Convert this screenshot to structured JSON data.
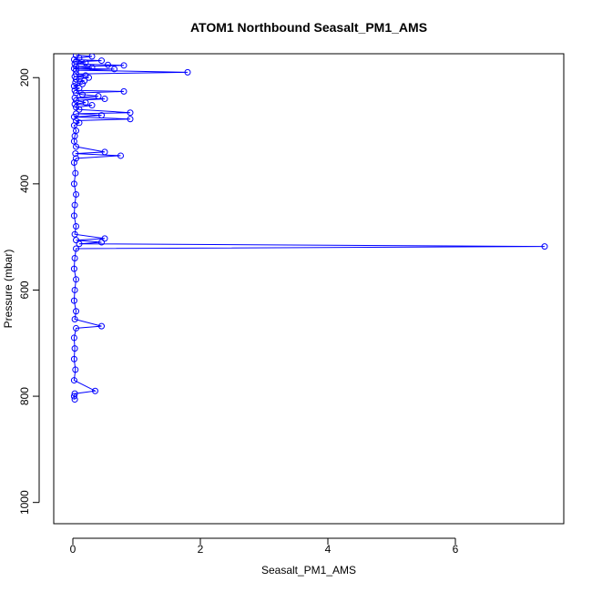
{
  "chart_data": {
    "type": "line",
    "title": "ATOM1 Northbound Seasalt_PM1_AMS",
    "xlabel": "Seasalt_PM1_AMS",
    "ylabel": "Pressure (mbar)",
    "xlim": [
      -0.3,
      7.7
    ],
    "ylim": [
      1040,
      155
    ],
    "y_reversed": true,
    "x_ticks": [
      0,
      2,
      4,
      6
    ],
    "y_ticks": [
      200,
      400,
      600,
      800,
      1000
    ],
    "grid": false,
    "colors": {
      "series": "#0000ff",
      "axes": "#000000"
    },
    "series": [
      {
        "values_note": "",
        "points": [
          [
            0.05,
            158
          ],
          [
            0.3,
            160
          ],
          [
            0.1,
            163
          ],
          [
            0.02,
            166
          ],
          [
            0.45,
            168
          ],
          [
            0.05,
            170
          ],
          [
            0.2,
            172
          ],
          [
            0.03,
            174
          ],
          [
            0.55,
            176
          ],
          [
            0.8,
            177
          ],
          [
            0.05,
            179
          ],
          [
            0.3,
            181
          ],
          [
            0.02,
            183
          ],
          [
            0.65,
            184
          ],
          [
            0.05,
            186
          ],
          [
            1.8,
            190
          ],
          [
            0.05,
            193
          ],
          [
            0.2,
            196
          ],
          [
            0.03,
            198
          ],
          [
            0.25,
            200
          ],
          [
            0.05,
            203
          ],
          [
            0.18,
            206
          ],
          [
            0.04,
            209
          ],
          [
            0.15,
            212
          ],
          [
            0.02,
            216
          ],
          [
            0.1,
            220
          ],
          [
            0.03,
            224
          ],
          [
            0.8,
            226
          ],
          [
            0.05,
            229
          ],
          [
            0.15,
            232
          ],
          [
            0.4,
            235
          ],
          [
            0.03,
            238
          ],
          [
            0.5,
            240
          ],
          [
            0.05,
            243
          ],
          [
            0.2,
            247
          ],
          [
            0.03,
            250
          ],
          [
            0.3,
            252
          ],
          [
            0.05,
            256
          ],
          [
            0.1,
            260
          ],
          [
            0.9,
            266
          ],
          [
            0.05,
            268
          ],
          [
            0.45,
            271
          ],
          [
            0.02,
            274
          ],
          [
            0.9,
            278
          ],
          [
            0.05,
            281
          ],
          [
            0.1,
            285
          ],
          [
            0.02,
            290
          ],
          [
            0.05,
            300
          ],
          [
            0.03,
            310
          ],
          [
            0.02,
            320
          ],
          [
            0.05,
            330
          ],
          [
            0.5,
            340
          ],
          [
            0.04,
            343
          ],
          [
            0.75,
            347
          ],
          [
            0.05,
            352
          ],
          [
            0.02,
            360
          ],
          [
            0.04,
            380
          ],
          [
            0.02,
            400
          ],
          [
            0.05,
            420
          ],
          [
            0.03,
            440
          ],
          [
            0.02,
            460
          ],
          [
            0.05,
            480
          ],
          [
            0.03,
            495
          ],
          [
            0.5,
            503
          ],
          [
            0.05,
            506
          ],
          [
            0.45,
            510
          ],
          [
            0.1,
            513
          ],
          [
            7.4,
            518
          ],
          [
            0.05,
            522
          ],
          [
            0.03,
            540
          ],
          [
            0.02,
            560
          ],
          [
            0.05,
            580
          ],
          [
            0.03,
            600
          ],
          [
            0.02,
            620
          ],
          [
            0.05,
            640
          ],
          [
            0.03,
            655
          ],
          [
            0.45,
            668
          ],
          [
            0.05,
            672
          ],
          [
            0.02,
            690
          ],
          [
            0.03,
            710
          ],
          [
            0.02,
            730
          ],
          [
            0.04,
            750
          ],
          [
            0.02,
            770
          ],
          [
            0.35,
            790
          ],
          [
            0.03,
            795
          ],
          [
            0.02,
            800
          ],
          [
            0.03,
            806
          ]
        ]
      }
    ]
  }
}
